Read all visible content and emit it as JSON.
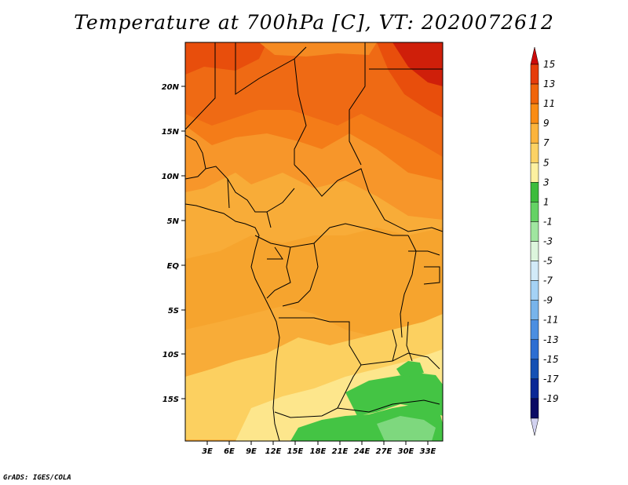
{
  "title": "Temperature at 700hPa [C], VT: 2020072612",
  "credit": "GrADS: IGES/COLA",
  "lat_labels": [
    "20N",
    "15N",
    "10N",
    "5N",
    "EQ",
    "5S",
    "10S",
    "15S"
  ],
  "lon_labels": [
    "3E",
    "6E",
    "9E",
    "12E",
    "15E",
    "18E",
    "21E",
    "24E",
    "27E",
    "30E",
    "33E"
  ],
  "colorbar": {
    "labels": [
      "15",
      "13",
      "11",
      "9",
      "7",
      "5",
      "3",
      "1",
      "-1",
      "-3",
      "-5",
      "-7",
      "-9",
      "-11",
      "-13",
      "-15",
      "-17",
      "-19"
    ],
    "colors": [
      "#cc0a0a",
      "#e63c0a",
      "#f0640a",
      "#fa8c14",
      "#fcb43c",
      "#fcd264",
      "#fcf0a0",
      "#3cbc3c",
      "#64d264",
      "#a0e6a0",
      "#dcf5dc",
      "#d2eaf8",
      "#a5d2f5",
      "#78b4eb",
      "#4b8ee1",
      "#2d6ed2",
      "#1450b4",
      "#0a2896",
      "#0a0a64",
      "#d2d2f0"
    ]
  }
}
